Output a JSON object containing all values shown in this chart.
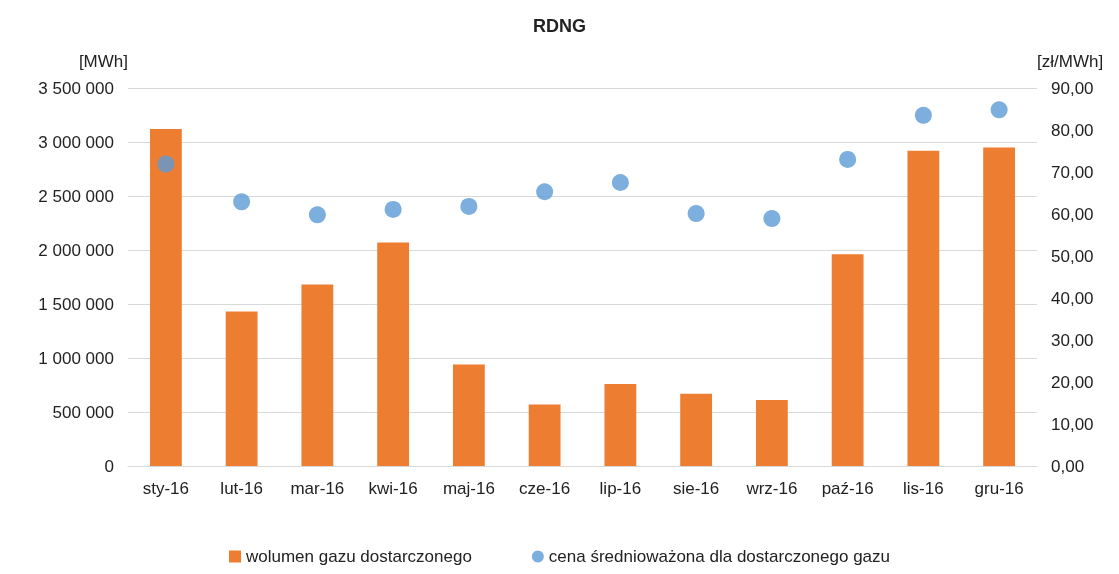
{
  "chart_data": {
    "type": "bar",
    "title": "RDNG",
    "ylabel": "[MWh]",
    "y2label": "[zł/MWh]",
    "categories": [
      "sty-16",
      "lut-16",
      "mar-16",
      "kwi-16",
      "maj-16",
      "cze-16",
      "lip-16",
      "sie-16",
      "wrz-16",
      "paź-16",
      "lis-16",
      "gru-16"
    ],
    "series": [
      {
        "name": "wolumen gazu dostarczonego",
        "color": "#ed7d31",
        "values": [
          3120000,
          1430000,
          1680000,
          2070000,
          940000,
          570000,
          760000,
          670000,
          610000,
          1960000,
          2920000,
          2950000
        ]
      },
      {
        "name": "cena średnioważona dla dostarczonego gazu",
        "type": "scatter",
        "axis": "y2",
        "color": "#5b9bd5",
        "values": [
          71.9,
          62.9,
          59.8,
          61.1,
          61.8,
          65.3,
          67.5,
          60.1,
          58.9,
          73.0,
          83.5,
          84.8
        ]
      }
    ],
    "ylim": [
      0,
      3500000
    ],
    "yticks": [
      {
        "value": 0,
        "label": "0"
      },
      {
        "value": 500000,
        "label": "500 000"
      },
      {
        "value": 1000000,
        "label": "1 000 000"
      },
      {
        "value": 1500000,
        "label": "1 500 000"
      },
      {
        "value": 2000000,
        "label": "2 000 000"
      },
      {
        "value": 2500000,
        "label": "2 500 000"
      },
      {
        "value": 3000000,
        "label": "3 000 000"
      },
      {
        "value": 3500000,
        "label": "3 500 000"
      }
    ],
    "y2lim": [
      0,
      90
    ],
    "y2ticks": [
      {
        "value": 0,
        "label": "0,00"
      },
      {
        "value": 10,
        "label": "10,00"
      },
      {
        "value": 20,
        "label": "20,00"
      },
      {
        "value": 30,
        "label": "30,00"
      },
      {
        "value": 40,
        "label": "40,00"
      },
      {
        "value": 50,
        "label": "50,00"
      },
      {
        "value": 60,
        "label": "60,00"
      },
      {
        "value": 70,
        "label": "70,00"
      },
      {
        "value": 80,
        "label": "80,00"
      },
      {
        "value": 90,
        "label": "90,00"
      }
    ],
    "grid": "y",
    "legend": "bottom",
    "marker": "circle"
  }
}
